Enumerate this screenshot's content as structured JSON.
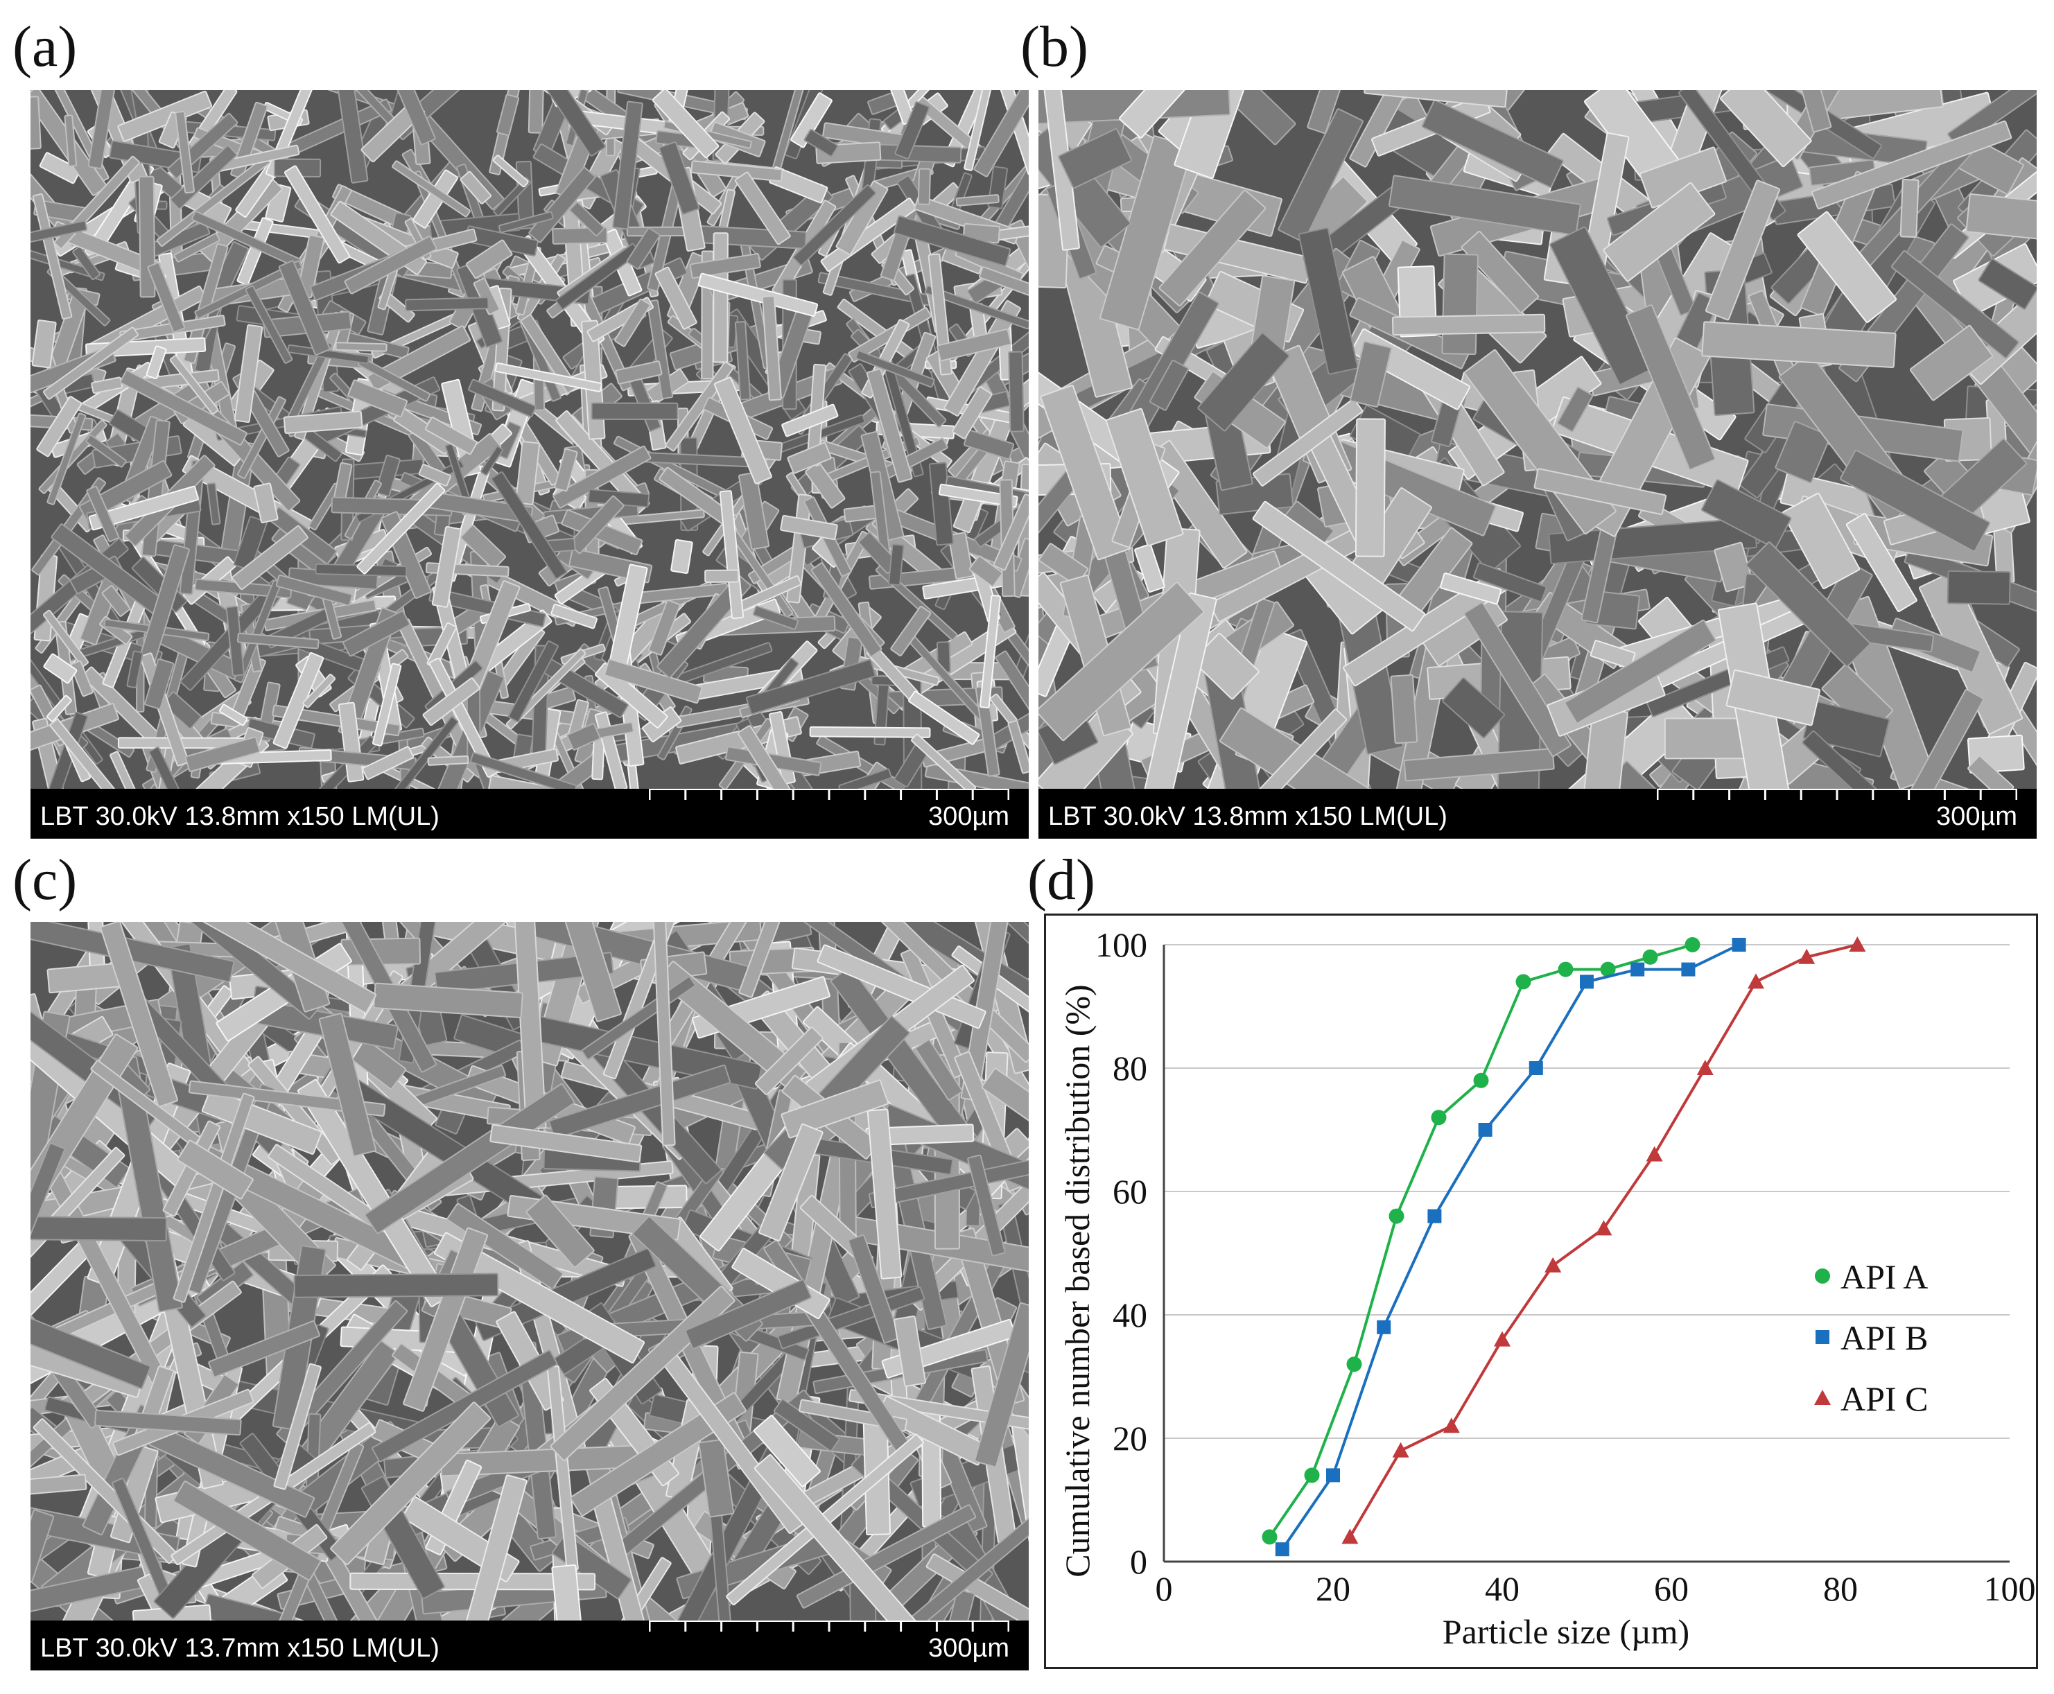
{
  "panels": {
    "a": {
      "letter": "(a)",
      "info": "LBT 30.0kV 13.8mm x150 LM(UL)",
      "scale": "300µm"
    },
    "b": {
      "letter": "(b)",
      "info": "LBT 30.0kV 13.8mm x150 LM(UL)",
      "scale": "300µm"
    },
    "c": {
      "letter": "(c)",
      "info": "LBT 30.0kV 13.7mm x150 LM(UL)",
      "scale": "300µm"
    },
    "d": {
      "letter": "(d)"
    }
  },
  "chart_data": {
    "type": "line",
    "xlabel": "Particle size (µm)",
    "ylabel": "Cumulative number based distribution (%)",
    "xlim": [
      0,
      100
    ],
    "ylim": [
      0,
      100
    ],
    "xticks": [
      0,
      20,
      40,
      60,
      80,
      100
    ],
    "yticks": [
      0,
      20,
      40,
      60,
      80,
      100
    ],
    "grid": "horizontal",
    "legend_position": "right",
    "series": [
      {
        "name": "API A",
        "color": "#1fb14a",
        "marker": "circle",
        "x": [
          12.5,
          17.5,
          22.5,
          27.5,
          32.5,
          37.5,
          42.5,
          47.5,
          52.5,
          57.5,
          62.5
        ],
        "y": [
          4,
          14,
          32,
          56,
          72,
          78,
          94,
          96,
          96,
          98,
          100
        ]
      },
      {
        "name": "API B",
        "color": "#1a6fbe",
        "marker": "square",
        "x": [
          14,
          20,
          26,
          32,
          38,
          44,
          50,
          56,
          62,
          68
        ],
        "y": [
          2,
          14,
          38,
          56,
          70,
          80,
          94,
          96,
          96,
          100
        ]
      },
      {
        "name": "API C",
        "color": "#c0393b",
        "marker": "triangle",
        "x": [
          22,
          28,
          34,
          40,
          46,
          52,
          58,
          64,
          70,
          76,
          82
        ],
        "y": [
          4,
          18,
          22,
          36,
          48,
          54,
          66,
          80,
          94,
          98,
          100
        ]
      }
    ]
  }
}
